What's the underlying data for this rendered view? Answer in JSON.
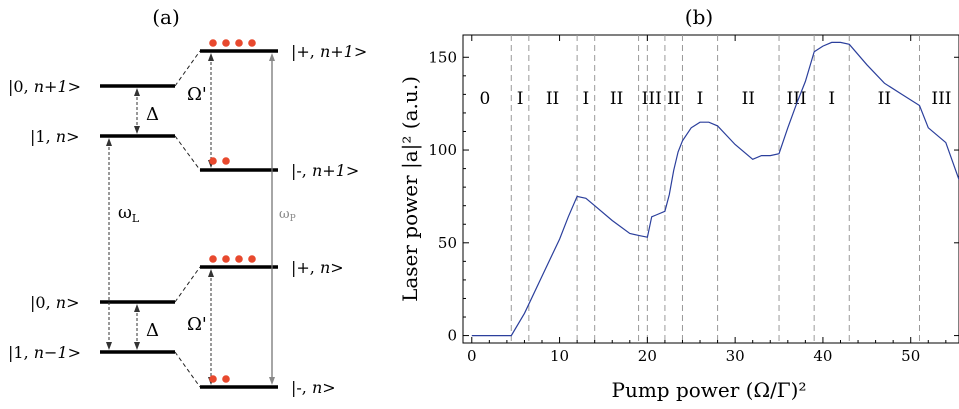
{
  "panel_a": {
    "label": "(a)",
    "bare_states": {
      "upper": [
        {
          "text": "|0, ",
          "italic": "n+1",
          "close": ">"
        },
        {
          "text": "|1, ",
          "italic": "n",
          "close": ">"
        }
      ],
      "lower": [
        {
          "text": "|0, ",
          "italic": "n",
          "close": ">"
        },
        {
          "text": "|1, ",
          "italic": "n−1",
          "close": ">"
        }
      ]
    },
    "dressed_states": {
      "upper": [
        {
          "text": "|+, ",
          "italic": "n+1",
          "close": ">"
        },
        {
          "text": "|-, ",
          "italic": "n+1",
          "close": ">"
        }
      ],
      "lower": [
        {
          "text": "|+, ",
          "italic": "n",
          "close": ">"
        },
        {
          "text": "|-, ",
          "italic": "n",
          "close": ">"
        }
      ]
    },
    "detuning_label": "Δ",
    "rabi_label": "Ω'",
    "laser_freq_label": "ω",
    "laser_freq_sub": "L",
    "pump_freq_label": "ω",
    "pump_freq_sub": "P",
    "dot_color": "#e8492e",
    "populations": [
      4,
      2,
      4,
      2
    ]
  },
  "chart_data": {
    "type": "line",
    "label": "(b)",
    "xlabel": "Pump power (Ω/Γ)²",
    "ylabel": "Laser power |a|² (a.u.)",
    "xlim": [
      -1,
      55.5
    ],
    "ylim": [
      -4,
      162
    ],
    "xticks": [
      0,
      10,
      20,
      30,
      40,
      50
    ],
    "yticks": [
      0,
      50,
      100,
      150
    ],
    "line_color": "#2b3f9c",
    "series": [
      {
        "x": [
          0,
          4.5,
          6,
          8,
          10,
          11,
          12,
          13,
          14,
          16,
          18,
          19,
          20,
          20.5,
          21,
          22,
          22.5,
          23,
          23.5,
          24,
          25,
          26,
          27,
          28,
          30,
          32,
          33,
          34,
          35,
          36,
          37,
          38,
          39,
          40,
          41,
          42,
          43,
          45,
          47,
          49,
          51,
          52,
          54,
          55.5
        ],
        "y": [
          0,
          0,
          12,
          32,
          52,
          64,
          75,
          74,
          70,
          62,
          55,
          54,
          53,
          64,
          65,
          67,
          76,
          89,
          99,
          105,
          112,
          115,
          115,
          113,
          103,
          95,
          97,
          97,
          98,
          112,
          125,
          137,
          153,
          156,
          158,
          158,
          157,
          146,
          136,
          130,
          124,
          112,
          104,
          84
        ]
      }
    ],
    "vlines": [
      4.5,
      6.5,
      12,
      14,
      19,
      20,
      22,
      24,
      28,
      35,
      39,
      43,
      51
    ],
    "regions": [
      {
        "label": "0",
        "x": 1.5
      },
      {
        "label": "I",
        "x": 5.5
      },
      {
        "label": "II",
        "x": 9.2
      },
      {
        "label": "I",
        "x": 13
      },
      {
        "label": "II",
        "x": 16.5
      },
      {
        "label": "III",
        "x": 20.5
      },
      {
        "label": "II",
        "x": 23
      },
      {
        "label": "I",
        "x": 26
      },
      {
        "label": "II",
        "x": 31.5
      },
      {
        "label": "III",
        "x": 37
      },
      {
        "label": "I",
        "x": 41
      },
      {
        "label": "II",
        "x": 47
      },
      {
        "label": "III",
        "x": 53.5
      }
    ]
  }
}
